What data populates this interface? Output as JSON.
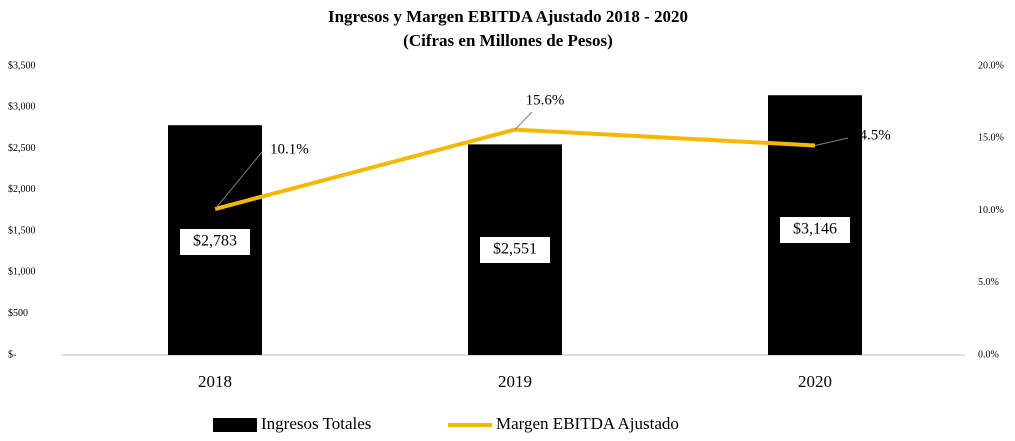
{
  "chart_data": {
    "type": "bar",
    "title": "Ingresos y Margen EBITDA Ajustado 2018 - 2020",
    "subtitle": "(Cifras en Millones de Pesos)",
    "categories": [
      "2018",
      "2019",
      "2020"
    ],
    "series": [
      {
        "name": "Ingresos Totales",
        "color": "#000000",
        "values": [
          2783,
          2551,
          3146
        ],
        "value_labels": [
          "$2,783",
          "$2,551",
          "$3,146"
        ]
      },
      {
        "name": "Margen EBITDA Ajustado",
        "type": "line",
        "axis": "y2",
        "color": "#f5b800",
        "values": [
          10.1,
          15.6,
          14.5
        ],
        "value_labels": [
          "10.1%",
          "15.6%",
          "14.5%"
        ]
      }
    ],
    "ylim": [
      0,
      3500
    ],
    "yticks": [
      {
        "value": 0,
        "label": "$-"
      },
      {
        "value": 500,
        "label": "$500"
      },
      {
        "value": 1000,
        "label": "$1,000"
      },
      {
        "value": 1500,
        "label": "$1,500"
      },
      {
        "value": 2000,
        "label": "$2,000"
      },
      {
        "value": 2500,
        "label": "$2,500"
      },
      {
        "value": 3000,
        "label": "$3,000"
      },
      {
        "value": 3500,
        "label": "$3,500"
      }
    ],
    "y2lim": [
      0,
      20
    ],
    "y2ticks": [
      {
        "value": 0,
        "label": "0.0%"
      },
      {
        "value": 5,
        "label": "5.0%"
      },
      {
        "value": 10,
        "label": "10.0%"
      },
      {
        "value": 15,
        "label": "15.0%"
      },
      {
        "value": 20,
        "label": "20.0%"
      }
    ],
    "legend": "bottom"
  }
}
